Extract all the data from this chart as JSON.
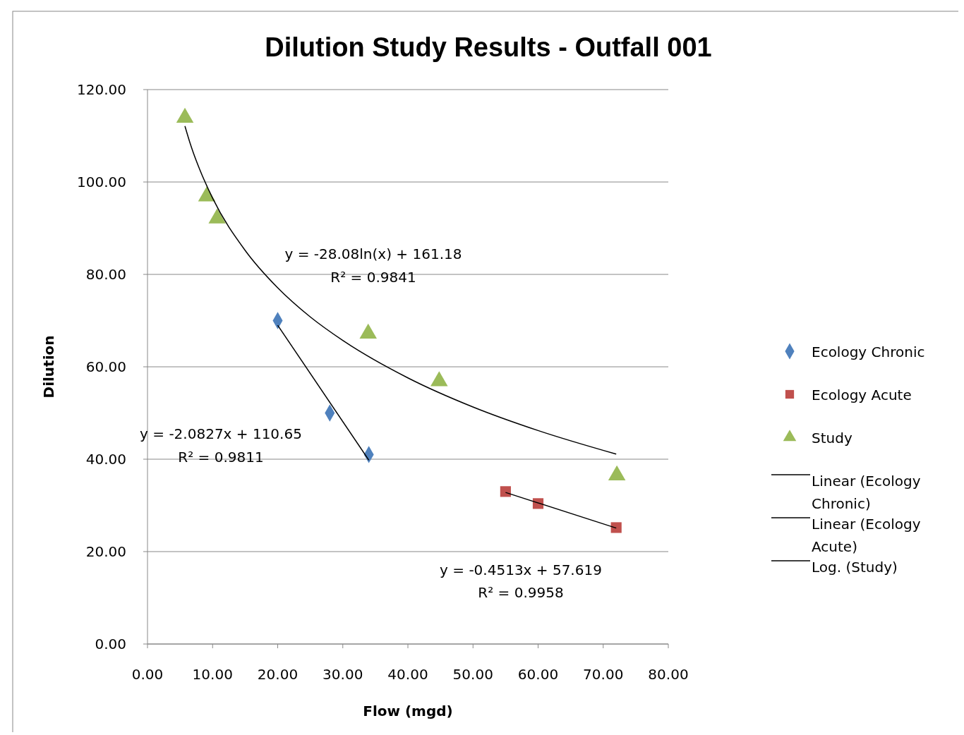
{
  "chart_data": {
    "type": "scatter",
    "title": "Dilution Study Results - Outfall 001",
    "xlabel": "Flow (mgd)",
    "ylabel": "Dilution",
    "xlim": [
      0,
      80
    ],
    "ylim": [
      0,
      120
    ],
    "xticks": [
      {
        "value": 0,
        "label": "0.00"
      },
      {
        "value": 10,
        "label": "10.00"
      },
      {
        "value": 20,
        "label": "20.00"
      },
      {
        "value": 30,
        "label": "30.00"
      },
      {
        "value": 40,
        "label": "40.00"
      },
      {
        "value": 50,
        "label": "50.00"
      },
      {
        "value": 60,
        "label": "60.00"
      },
      {
        "value": 70,
        "label": "70.00"
      },
      {
        "value": 80,
        "label": "80.00"
      }
    ],
    "yticks": [
      {
        "value": 0,
        "label": "0.00"
      },
      {
        "value": 20,
        "label": "20.00"
      },
      {
        "value": 40,
        "label": "40.00"
      },
      {
        "value": 60,
        "label": "60.00"
      },
      {
        "value": 80,
        "label": "80.00"
      },
      {
        "value": 100,
        "label": "100.00"
      },
      {
        "value": 120,
        "label": "120.00"
      }
    ],
    "grid": "y",
    "legend": "right",
    "series": [
      {
        "name": "Ecology Chronic",
        "color": "#4f81bd",
        "marker": "diamond",
        "x": [
          20,
          28,
          34
        ],
        "values": [
          70,
          50,
          41
        ]
      },
      {
        "name": "Ecology Acute",
        "color": "#c0504d",
        "marker": "square",
        "x": [
          55,
          60,
          72
        ],
        "values": [
          33,
          30.4,
          25.2
        ]
      },
      {
        "name": "Study",
        "color": "#9bbb59",
        "marker": "triangle",
        "x": [
          5.75,
          9.1,
          10.7,
          33.9,
          44.8,
          72.1
        ],
        "values": [
          113.9,
          96.9,
          92.1,
          67.2,
          56.9,
          36.5
        ]
      },
      {
        "name": "Linear (Ecology Chronic)",
        "type": "line",
        "color": "#000000",
        "marker": "none",
        "x": [
          20,
          34
        ],
        "values": [
          69,
          39.8
        ]
      },
      {
        "name": "Linear (Ecology Acute)",
        "type": "line",
        "color": "#000000",
        "marker": "none",
        "x": [
          55,
          72
        ],
        "values": [
          32.8,
          25.1
        ]
      },
      {
        "name": "Log. (Study)",
        "type": "line",
        "color": "#000000",
        "marker": "none",
        "x": [
          5.75,
          6.5,
          7,
          8,
          10,
          15,
          20,
          25,
          30,
          40,
          50,
          60,
          72
        ],
        "values": [
          112.1,
          108.6,
          106.5,
          102.8,
          96.5,
          85.2,
          77.1,
          70.8,
          65.7,
          57.6,
          51.3,
          46.2,
          41.1
        ]
      }
    ],
    "annotations": [
      "y = -28.08ln(x) + 161.18",
      "R² = 0.9841",
      "y = -2.0827x + 110.65",
      "R² = 0.9811",
      "y = -0.4513x + 57.619",
      "R² = 0.9958"
    ]
  }
}
